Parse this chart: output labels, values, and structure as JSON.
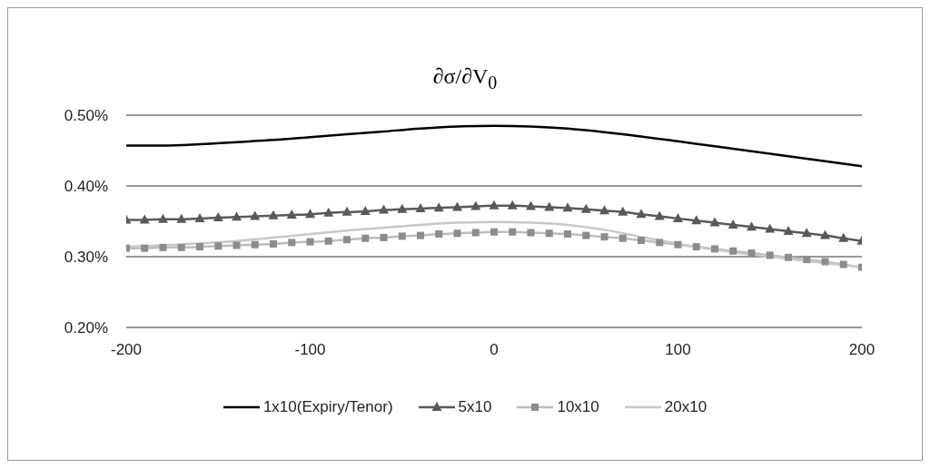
{
  "chart_data": {
    "type": "line",
    "title": "∂σ/∂V$_{0}$",
    "xlim": [
      -200,
      200
    ],
    "xticks": [
      -200,
      -100,
      0,
      100,
      200
    ],
    "ylim": [
      0.2,
      0.5
    ],
    "yticks": [
      {
        "value": 0.2,
        "label": "0.20%"
      },
      {
        "value": 0.3,
        "label": "0.30%"
      },
      {
        "value": 0.4,
        "label": "0.40%"
      },
      {
        "value": 0.5,
        "label": "0.50%"
      }
    ],
    "grid": "y",
    "legend": "bottom",
    "series": [
      {
        "name": "1x10(Expiry/Tenor)",
        "color": "#000000",
        "marker": "none",
        "x": [
          -200,
          -180,
          -160,
          -140,
          -120,
          -100,
          -80,
          -60,
          -40,
          -20,
          0,
          20,
          40,
          60,
          80,
          100,
          120,
          140,
          160,
          180,
          200
        ],
        "values": [
          0.457,
          0.457,
          0.459,
          0.462,
          0.465,
          0.469,
          0.473,
          0.477,
          0.481,
          0.484,
          0.485,
          0.484,
          0.481,
          0.476,
          0.47,
          0.463,
          0.456,
          0.449,
          0.442,
          0.435,
          0.428
        ]
      },
      {
        "name": "5x10",
        "color": "#595959",
        "marker": "triangle",
        "x": [
          -200,
          -190,
          -180,
          -170,
          -160,
          -150,
          -140,
          -130,
          -120,
          -110,
          -100,
          -90,
          -80,
          -70,
          -60,
          -50,
          -40,
          -30,
          -20,
          -10,
          0,
          10,
          20,
          30,
          40,
          50,
          60,
          70,
          80,
          90,
          100,
          110,
          120,
          130,
          140,
          150,
          160,
          170,
          180,
          190,
          200
        ],
        "values": [
          0.352,
          0.352,
          0.353,
          0.353,
          0.354,
          0.355,
          0.356,
          0.357,
          0.358,
          0.359,
          0.36,
          0.362,
          0.363,
          0.364,
          0.366,
          0.367,
          0.368,
          0.369,
          0.37,
          0.371,
          0.372,
          0.372,
          0.371,
          0.37,
          0.369,
          0.367,
          0.365,
          0.363,
          0.36,
          0.357,
          0.354,
          0.351,
          0.348,
          0.345,
          0.342,
          0.339,
          0.336,
          0.333,
          0.33,
          0.326,
          0.322
        ]
      },
      {
        "name": "10x10",
        "color": "#8c8c8c",
        "marker": "square",
        "x": [
          -200,
          -190,
          -180,
          -170,
          -160,
          -150,
          -140,
          -130,
          -120,
          -110,
          -100,
          -90,
          -80,
          -70,
          -60,
          -50,
          -40,
          -30,
          -20,
          -10,
          0,
          10,
          20,
          30,
          40,
          50,
          60,
          70,
          80,
          90,
          100,
          110,
          120,
          130,
          140,
          150,
          160,
          170,
          180,
          190,
          200
        ],
        "values": [
          0.312,
          0.312,
          0.313,
          0.313,
          0.314,
          0.315,
          0.316,
          0.317,
          0.318,
          0.32,
          0.321,
          0.322,
          0.324,
          0.326,
          0.327,
          0.329,
          0.33,
          0.332,
          0.333,
          0.334,
          0.335,
          0.335,
          0.334,
          0.333,
          0.332,
          0.33,
          0.328,
          0.326,
          0.323,
          0.32,
          0.317,
          0.314,
          0.311,
          0.308,
          0.305,
          0.302,
          0.299,
          0.296,
          0.293,
          0.289,
          0.285
        ]
      },
      {
        "name": "20x10",
        "color": "#c8c8c8",
        "marker": "none",
        "x": [
          -200,
          -180,
          -160,
          -140,
          -120,
          -100,
          -80,
          -60,
          -40,
          -20,
          0,
          20,
          40,
          60,
          80,
          100,
          120,
          140,
          160,
          180,
          200
        ],
        "values": [
          0.314,
          0.316,
          0.319,
          0.322,
          0.327,
          0.332,
          0.337,
          0.341,
          0.345,
          0.348,
          0.349,
          0.348,
          0.345,
          0.338,
          0.328,
          0.318,
          0.31,
          0.303,
          0.297,
          0.291,
          0.285
        ]
      }
    ]
  }
}
